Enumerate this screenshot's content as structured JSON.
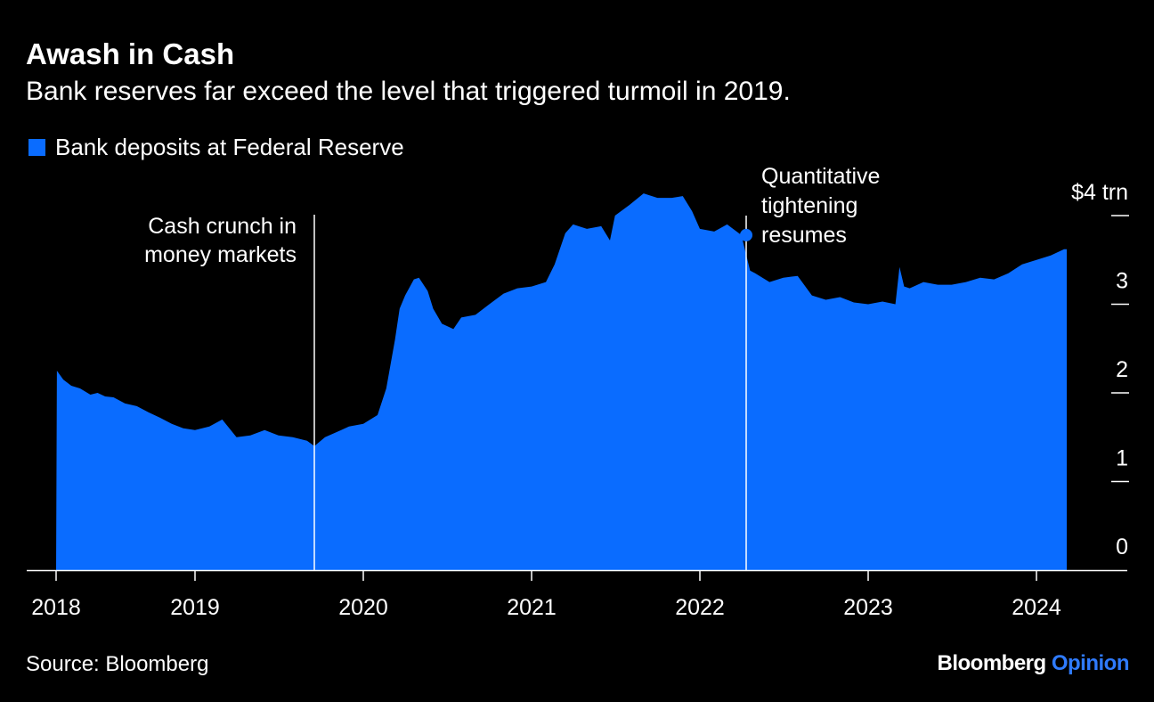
{
  "colors": {
    "background": "#000000",
    "area": "#0a6cff",
    "text": "#ffffff",
    "brand_accent": "#2f7bff"
  },
  "header": {
    "title": "Awash in Cash",
    "subtitle": "Bank reserves far exceed the level that triggered turmoil in 2019."
  },
  "footer": {
    "source": "Source: Bloomberg",
    "brand_primary": "Bloomberg",
    "brand_secondary": "Opinion"
  },
  "chart_data": {
    "type": "area",
    "title": "Awash in Cash",
    "subtitle": "Bank reserves far exceed the level that triggered turmoil in 2019.",
    "series": [
      {
        "name": "Bank deposits at Federal Reserve",
        "color": "#0a6cff",
        "x": [
          "2018-01-03",
          "2018-01-20",
          "2018-02-10",
          "2018-03-05",
          "2018-04-01",
          "2018-04-20",
          "2018-05-10",
          "2018-06-01",
          "2018-07-01",
          "2018-08-01",
          "2018-09-01",
          "2018-10-01",
          "2018-11-01",
          "2018-12-01",
          "2019-01-01",
          "2019-02-01",
          "2019-03-01",
          "2019-04-01",
          "2019-05-01",
          "2019-06-01",
          "2019-07-01",
          "2019-08-01",
          "2019-09-01",
          "2019-09-17",
          "2019-10-10",
          "2019-11-01",
          "2019-12-01",
          "2020-01-01",
          "2020-02-01",
          "2020-02-20",
          "2020-03-10",
          "2020-03-20",
          "2020-04-01",
          "2020-04-20",
          "2020-05-01",
          "2020-05-20",
          "2020-06-01",
          "2020-06-20",
          "2020-07-15",
          "2020-08-01",
          "2020-09-01",
          "2020-10-01",
          "2020-11-01",
          "2020-12-01",
          "2021-01-01",
          "2021-02-01",
          "2021-02-20",
          "2021-03-15",
          "2021-04-01",
          "2021-05-01",
          "2021-06-01",
          "2021-06-20",
          "2021-07-01",
          "2021-08-01",
          "2021-09-01",
          "2021-10-01",
          "2021-11-01",
          "2021-11-25",
          "2021-12-15",
          "2022-01-01",
          "2022-02-01",
          "2022-03-01",
          "2022-04-01",
          "2022-04-20",
          "2022-05-01",
          "2022-06-01",
          "2022-07-01",
          "2022-08-01",
          "2022-09-01",
          "2022-10-01",
          "2022-11-01",
          "2022-12-01",
          "2023-01-01",
          "2023-02-01",
          "2023-03-01",
          "2023-03-10",
          "2023-03-20",
          "2023-04-01",
          "2023-05-01",
          "2023-06-01",
          "2023-07-01",
          "2023-08-01",
          "2023-09-01",
          "2023-10-01",
          "2023-11-01",
          "2023-12-01",
          "2024-01-01",
          "2024-02-01",
          "2024-03-01"
        ],
        "y": [
          2.25,
          2.15,
          2.08,
          2.05,
          1.98,
          2.0,
          1.96,
          1.95,
          1.88,
          1.85,
          1.78,
          1.72,
          1.65,
          1.6,
          1.58,
          1.62,
          1.7,
          1.5,
          1.52,
          1.58,
          1.52,
          1.5,
          1.46,
          1.4,
          1.5,
          1.55,
          1.62,
          1.65,
          1.75,
          2.05,
          2.6,
          2.95,
          3.1,
          3.28,
          3.3,
          3.15,
          2.95,
          2.78,
          2.72,
          2.85,
          2.88,
          3.0,
          3.12,
          3.18,
          3.2,
          3.25,
          3.45,
          3.8,
          3.9,
          3.85,
          3.88,
          3.72,
          4.0,
          4.12,
          4.25,
          4.2,
          4.2,
          4.22,
          4.05,
          3.85,
          3.82,
          3.9,
          3.78,
          3.38,
          3.35,
          3.25,
          3.3,
          3.32,
          3.1,
          3.05,
          3.08,
          3.02,
          3.0,
          3.03,
          3.0,
          3.42,
          3.2,
          3.18,
          3.25,
          3.22,
          3.22,
          3.25,
          3.3,
          3.28,
          3.35,
          3.45,
          3.5,
          3.55,
          3.62
        ]
      }
    ],
    "y_axis": {
      "ticks": [
        0,
        1,
        2,
        3,
        4
      ],
      "tick_labels": [
        "0",
        "1",
        "2",
        "3",
        "$4 trn"
      ],
      "ylim": [
        0,
        4
      ],
      "position": "right"
    },
    "x_axis": {
      "ticks": [
        "2018",
        "2019",
        "2020",
        "2021",
        "2022",
        "2023",
        "2024"
      ],
      "tick_labels": [
        "2018",
        "2019",
        "2020",
        "2021",
        "2022",
        "2023",
        "2024"
      ]
    },
    "legend": {
      "placement": "top-left",
      "entries": [
        "Bank deposits at Federal Reserve"
      ]
    },
    "annotations": [
      {
        "text": "Cash crunch in money markets",
        "lines": [
          "Cash crunch in",
          "money markets"
        ],
        "x": "2019-09-17"
      },
      {
        "text": "Quantitative tightening resumes",
        "lines": [
          "Quantitative",
          "tightening",
          "resumes"
        ],
        "x": "2022-06-01",
        "y": 3.78
      }
    ],
    "grid": false
  }
}
